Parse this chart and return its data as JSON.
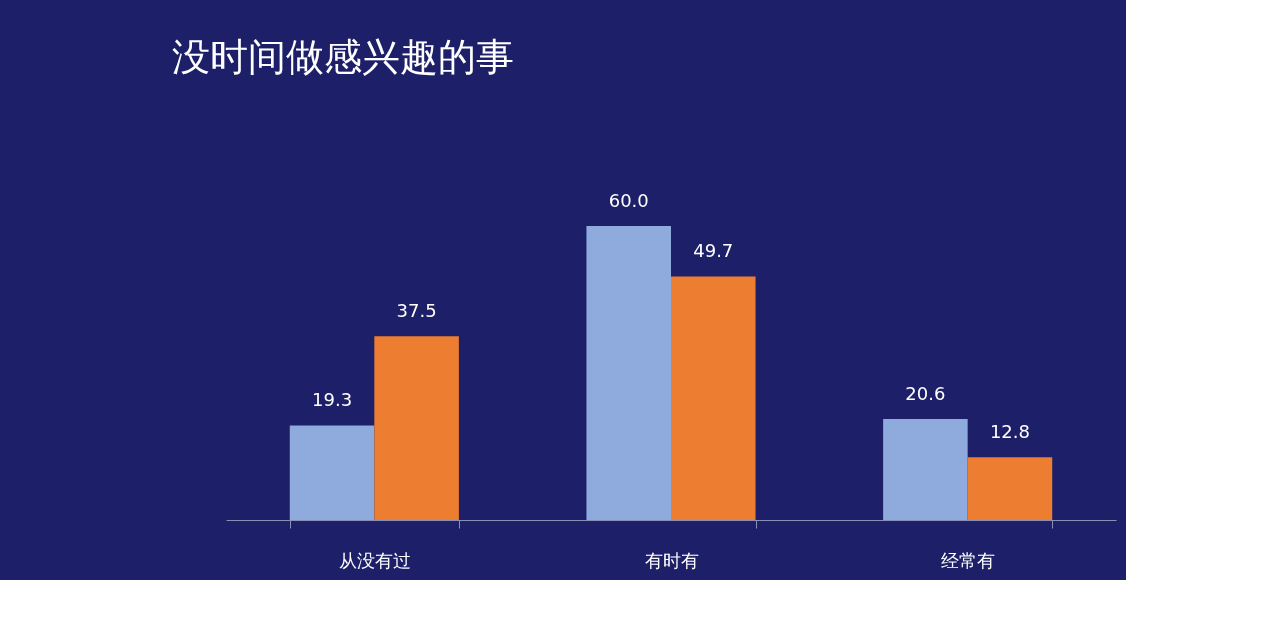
{
  "chart_data": {
    "type": "bar",
    "title": "没时间做感兴趣的事",
    "categories": [
      "从没有过",
      "有时有",
      "经常有"
    ],
    "series": [
      {
        "color": "#8faadc",
        "values": [
          19.3,
          60.0,
          20.6
        ],
        "value_labels": [
          "19.3",
          "60.0",
          "20.6"
        ]
      },
      {
        "color": "#ed7d31",
        "values": [
          37.5,
          49.7,
          12.8
        ],
        "value_labels": [
          "37.5",
          "49.7",
          "12.8"
        ]
      }
    ],
    "grid": false,
    "legend": false
  }
}
